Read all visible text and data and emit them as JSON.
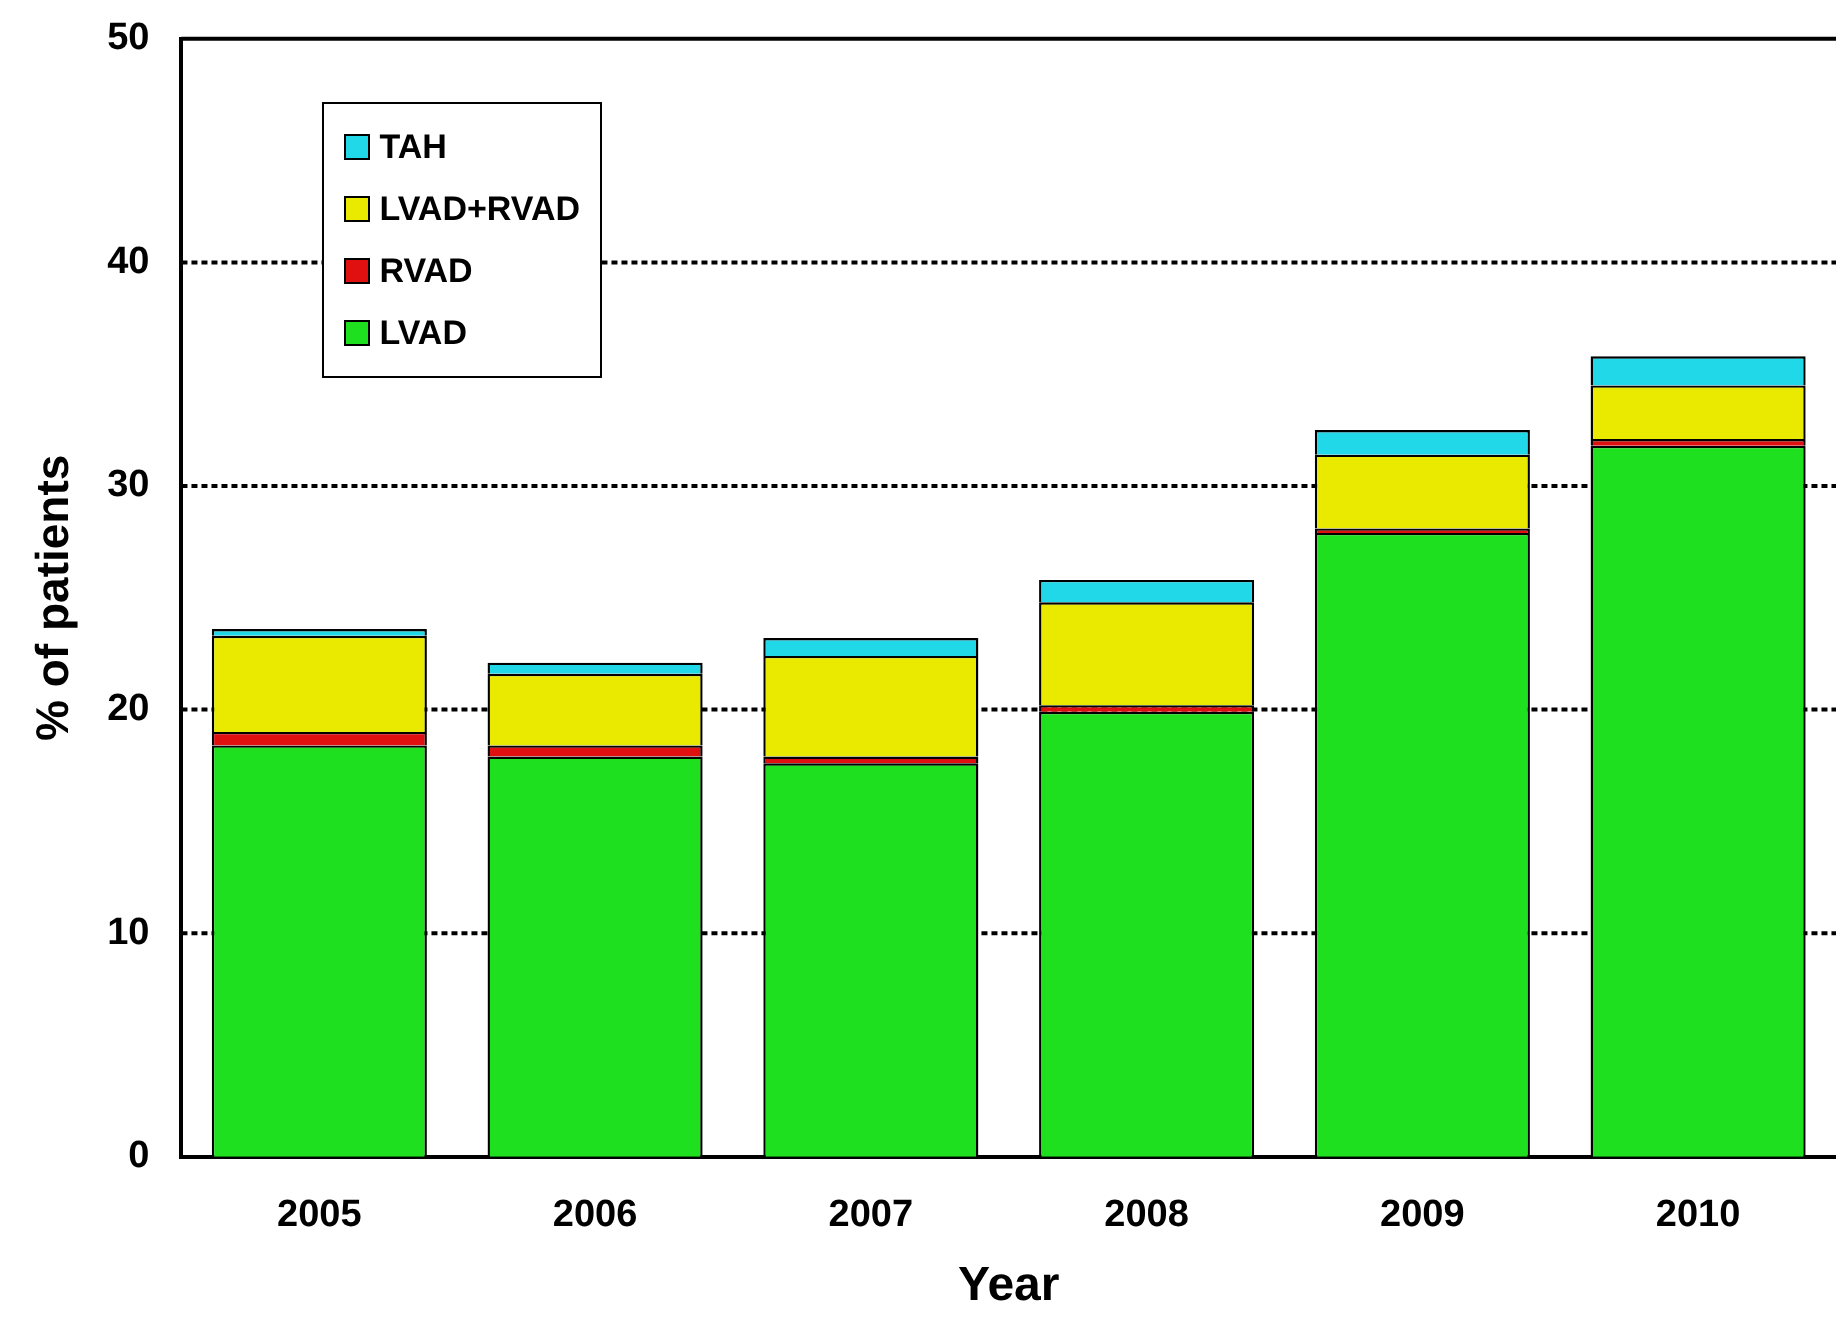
{
  "chart_data": {
    "type": "bar",
    "stacked": true,
    "xlabel": "Year",
    "ylabel": "% of patients",
    "categories": [
      "2005",
      "2006",
      "2007",
      "2008",
      "2009",
      "2010"
    ],
    "series": [
      {
        "name": "LVAD",
        "color": "#1ee01e",
        "values": [
          18.4,
          17.9,
          17.6,
          19.9,
          27.9,
          31.8
        ]
      },
      {
        "name": "RVAD",
        "color": "#e01010",
        "values": [
          0.6,
          0.5,
          0.3,
          0.3,
          0.2,
          0.3
        ]
      },
      {
        "name": "LVAD+RVAD",
        "color": "#eaea00",
        "values": [
          4.3,
          3.2,
          4.5,
          4.6,
          3.3,
          2.4
        ]
      },
      {
        "name": "TAH",
        "color": "#20d8e8",
        "values": [
          0.3,
          0.5,
          0.8,
          1.0,
          1.1,
          1.3
        ]
      }
    ],
    "ylim": [
      0,
      50
    ],
    "yticks": [
      0,
      10,
      20,
      30,
      40,
      50
    ],
    "grid": "y",
    "legend": "top left"
  }
}
